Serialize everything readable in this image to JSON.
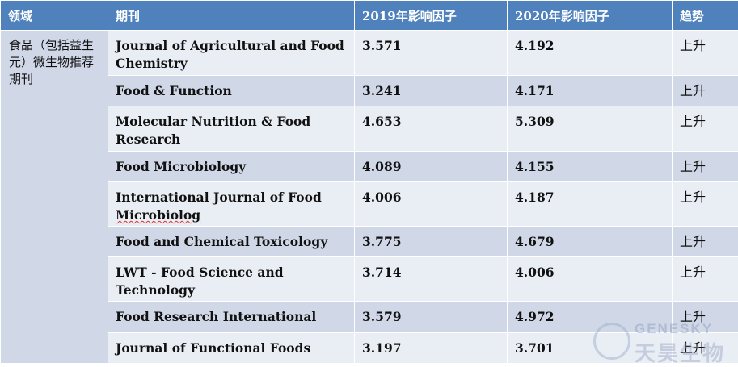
{
  "headers": [
    "领域",
    "期刊",
    "2019年影响因子",
    "2020年影响因子",
    "趋势"
  ],
  "field": "食品（包括益生元）微生物推荐期刊",
  "rows": [
    {
      "journal": "Journal of Agricultural and Food Chemistry",
      "if2019": "3.571",
      "if2020": "4.192",
      "trend": "上升"
    },
    {
      "journal": "Food & Function",
      "if2019": "3.241",
      "if2020": "4.171",
      "trend": "上升"
    },
    {
      "journal": "Molecular Nutrition & Food Research",
      "if2019": "4.653",
      "if2020": "5.309",
      "trend": "上升"
    },
    {
      "journal": "Food Microbiology",
      "if2019": "4.089",
      "if2020": "4.155",
      "trend": "上升"
    },
    {
      "journal_prefix": "International Journal of Food ",
      "journal_squiggle": "Microbiolog",
      "if2019": "4.006",
      "if2020": "4.187",
      "trend": "上升"
    },
    {
      "journal": "Food and Chemical Toxicology",
      "if2019": "3.775",
      "if2020": "4.679",
      "trend": "上升"
    },
    {
      "journal": "LWT - Food Science and Technology",
      "if2019": "3.714",
      "if2020": "4.006",
      "trend": "上升"
    },
    {
      "journal": "Food Research International",
      "if2019": "3.579",
      "if2020": "4.972",
      "trend": "上升"
    },
    {
      "journal": "Journal of Functional Foods",
      "if2019": "3.197",
      "if2020": "3.701",
      "trend": "上升"
    }
  ],
  "watermark": {
    "en": "GENESKY",
    "cn": "天昊生物"
  }
}
